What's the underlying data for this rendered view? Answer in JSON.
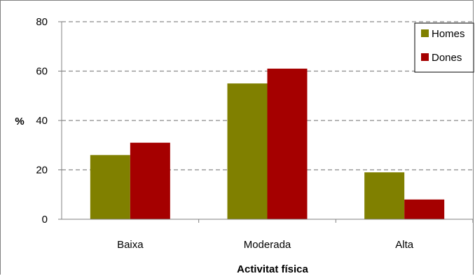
{
  "chart_data": {
    "type": "bar",
    "title": "",
    "xlabel": "Activitat física",
    "ylabel": "%",
    "categories": [
      "Baixa",
      "Moderada",
      "Alta"
    ],
    "series": [
      {
        "name": "Homes",
        "values": [
          26,
          55,
          19
        ],
        "color": "#808000"
      },
      {
        "name": "Dones",
        "values": [
          31,
          61,
          8
        ],
        "color": "#a50000"
      }
    ],
    "ylim": [
      0,
      80
    ],
    "yticks": [
      "0",
      "20",
      "40",
      "60",
      "80"
    ],
    "grid": "dashed horizontal",
    "legend_position": "top-right"
  }
}
